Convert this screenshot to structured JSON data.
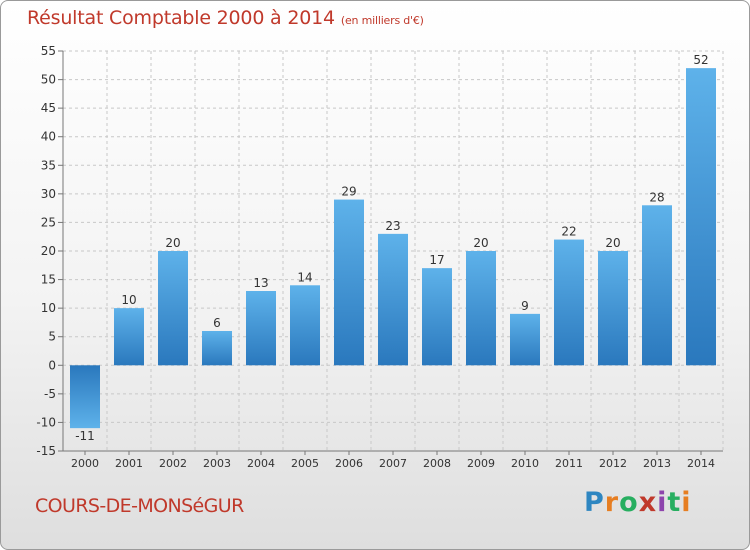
{
  "chart_data": {
    "type": "bar",
    "title": "Résultat Comptable 2000 à 2014",
    "subtitle": "(en milliers d'€)",
    "xlabel": "",
    "ylabel": "",
    "categories": [
      "2000",
      "2001",
      "2002",
      "2003",
      "2004",
      "2005",
      "2006",
      "2007",
      "2008",
      "2009",
      "2010",
      "2011",
      "2012",
      "2013",
      "2014"
    ],
    "values": [
      -11,
      10,
      20,
      6,
      13,
      14,
      29,
      23,
      17,
      20,
      9,
      22,
      20,
      28,
      52
    ],
    "data_labels": [
      "-11",
      "10",
      "20",
      "6",
      "13",
      "14",
      "29",
      "23",
      "17",
      "20",
      "9",
      "22",
      "20",
      "28",
      "52"
    ],
    "ylim": [
      -15,
      55
    ],
    "yticks": [
      -15,
      -10,
      -5,
      0,
      5,
      10,
      15,
      20,
      25,
      30,
      35,
      40,
      45,
      50,
      55
    ],
    "ytick_labels": [
      "-15",
      "-10",
      "-5",
      "0",
      "5",
      "10",
      "15",
      "20",
      "25",
      "30",
      "35",
      "40",
      "45",
      "50",
      "55"
    ],
    "grid": true,
    "bar_color": "#3a8fd6"
  },
  "footer": {
    "commune": "COURS-DE-MONSéGUR",
    "brand_letters": [
      "P",
      "r",
      "o",
      "x",
      "i",
      "t",
      "i"
    ],
    "brand_colors": [
      "#2e86c1",
      "#e67e22",
      "#27ae60",
      "#c0392b",
      "#8e44ad",
      "#27ae60",
      "#e67e22"
    ]
  }
}
